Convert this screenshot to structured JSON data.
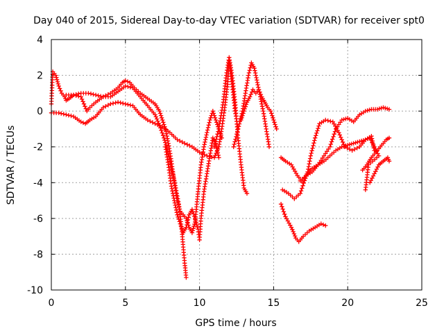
{
  "chart_data": {
    "type": "scatter",
    "title": "Day 040 of 2015, Sidereal Day-to-day VTEC variation (SDTVAR) for receiver spt0",
    "xlabel": "GPS time / hours",
    "ylabel": "SDTVAR / TECUs",
    "xlim": [
      0,
      25
    ],
    "ylim": [
      -10,
      4
    ],
    "xticks": [
      0,
      5,
      10,
      15,
      20,
      25
    ],
    "yticks": [
      -10,
      -8,
      -6,
      -4,
      -2,
      0,
      2,
      4
    ],
    "grid": true,
    "marker": "+",
    "color": "#ff0000",
    "series": [
      {
        "points": [
          [
            0,
            0.4
          ],
          [
            0.1,
            2.2
          ],
          [
            0.3,
            2.0
          ],
          [
            0.5,
            1.4
          ],
          [
            0.7,
            1.0
          ],
          [
            0.9,
            0.8
          ],
          [
            1.0,
            0.6
          ],
          [
            1.2,
            0.7
          ],
          [
            1.5,
            0.9
          ],
          [
            2.0,
            1.0
          ],
          [
            2.5,
            1.0
          ],
          [
            3.0,
            0.9
          ],
          [
            3.5,
            0.8
          ],
          [
            4.0,
            1.0
          ],
          [
            4.5,
            1.3
          ],
          [
            4.8,
            1.6
          ],
          [
            5.0,
            1.7
          ],
          [
            5.3,
            1.6
          ],
          [
            5.6,
            1.3
          ],
          [
            6.0,
            1.0
          ],
          [
            6.5,
            0.7
          ],
          [
            7.0,
            0.4
          ],
          [
            7.3,
            0.0
          ],
          [
            7.5,
            -0.5
          ],
          [
            7.7,
            -1.0
          ],
          [
            7.9,
            -1.8
          ],
          [
            8.1,
            -2.8
          ],
          [
            8.3,
            -4.0
          ],
          [
            8.5,
            -5.0
          ],
          [
            8.7,
            -5.6
          ],
          [
            8.9,
            -5.8
          ],
          [
            9.1,
            -6.0
          ],
          [
            9.3,
            -6.5
          ],
          [
            9.5,
            -6.8
          ],
          [
            9.7,
            -6.2
          ],
          [
            9.9,
            -4.5
          ],
          [
            10.1,
            -3.0
          ],
          [
            10.3,
            -2.0
          ],
          [
            10.5,
            -1.2
          ],
          [
            10.7,
            -0.5
          ],
          [
            10.9,
            0.0
          ],
          [
            11.1,
            -0.5
          ],
          [
            11.3,
            -1.0
          ],
          [
            11.5,
            -1.5
          ]
        ]
      },
      {
        "points": [
          [
            0,
            -0.1
          ],
          [
            0.5,
            -0.1
          ],
          [
            1.0,
            -0.2
          ],
          [
            1.5,
            -0.3
          ],
          [
            2.0,
            -0.6
          ],
          [
            2.3,
            -0.7
          ],
          [
            2.6,
            -0.5
          ],
          [
            3.0,
            -0.3
          ],
          [
            3.5,
            0.2
          ],
          [
            4.0,
            0.4
          ],
          [
            4.5,
            0.5
          ],
          [
            5.0,
            0.4
          ],
          [
            5.5,
            0.3
          ],
          [
            6.0,
            -0.2
          ],
          [
            6.5,
            -0.5
          ],
          [
            7.0,
            -0.7
          ],
          [
            7.5,
            -0.9
          ],
          [
            8.0,
            -1.2
          ],
          [
            8.5,
            -1.6
          ],
          [
            9.0,
            -1.8
          ],
          [
            9.5,
            -2.0
          ],
          [
            10.0,
            -2.3
          ],
          [
            10.5,
            -2.5
          ],
          [
            11.0,
            -2.6
          ],
          [
            11.3,
            -2.0
          ],
          [
            11.5,
            -1.0
          ],
          [
            11.7,
            0.2
          ],
          [
            11.9,
            1.5
          ],
          [
            12.0,
            2.8
          ],
          [
            12.2,
            1.5
          ],
          [
            12.4,
            0.0
          ],
          [
            12.6,
            -1.0
          ]
        ]
      },
      {
        "points": [
          [
            1.0,
            0.9
          ],
          [
            1.5,
            0.9
          ],
          [
            2.0,
            0.8
          ],
          [
            2.2,
            0.4
          ],
          [
            2.4,
            0.0
          ],
          [
            2.6,
            0.2
          ],
          [
            3.0,
            0.5
          ],
          [
            3.5,
            0.8
          ],
          [
            4.0,
            0.8
          ],
          [
            4.5,
            1.1
          ],
          [
            5.0,
            1.4
          ],
          [
            5.5,
            1.3
          ],
          [
            6.0,
            0.8
          ],
          [
            6.5,
            0.3
          ],
          [
            7.0,
            -0.2
          ],
          [
            7.3,
            -0.8
          ],
          [
            7.6,
            -1.5
          ],
          [
            7.9,
            -2.4
          ],
          [
            8.2,
            -3.5
          ],
          [
            8.4,
            -4.3
          ],
          [
            8.6,
            -5.2
          ],
          [
            8.8,
            -6.6
          ],
          [
            8.9,
            -7.6
          ],
          [
            9.0,
            -8.5
          ],
          [
            9.1,
            -9.3
          ]
        ]
      },
      {
        "points": [
          [
            7.7,
            -2.0
          ],
          [
            7.9,
            -3.0
          ],
          [
            8.1,
            -4.2
          ],
          [
            8.3,
            -5.0
          ],
          [
            8.5,
            -5.8
          ],
          [
            8.7,
            -6.3
          ],
          [
            8.9,
            -6.8
          ],
          [
            9.1,
            -6.5
          ],
          [
            9.3,
            -5.8
          ],
          [
            9.5,
            -5.5
          ],
          [
            9.7,
            -6.0
          ],
          [
            9.9,
            -6.6
          ],
          [
            10.0,
            -7.2
          ],
          [
            10.1,
            -6.0
          ],
          [
            10.3,
            -4.5
          ],
          [
            10.5,
            -3.5
          ],
          [
            10.7,
            -2.5
          ],
          [
            10.9,
            -1.5
          ],
          [
            11.1,
            -1.8
          ],
          [
            11.3,
            -2.6
          ]
        ]
      },
      {
        "points": [
          [
            11.0,
            -2.0
          ],
          [
            11.3,
            -1.0
          ],
          [
            11.6,
            0.5
          ],
          [
            11.8,
            2.0
          ],
          [
            12.0,
            3.0
          ],
          [
            12.2,
            2.0
          ],
          [
            12.4,
            0.5
          ],
          [
            12.6,
            -1.5
          ],
          [
            12.8,
            -3.0
          ],
          [
            13.0,
            -4.3
          ],
          [
            13.2,
            -4.6
          ]
        ]
      },
      {
        "points": [
          [
            12.3,
            -2.0
          ],
          [
            12.6,
            -1.0
          ],
          [
            12.9,
            0.0
          ],
          [
            13.1,
            1.0
          ],
          [
            13.3,
            2.0
          ],
          [
            13.5,
            2.7
          ],
          [
            13.7,
            2.4
          ],
          [
            13.9,
            1.6
          ],
          [
            14.1,
            0.8
          ],
          [
            14.3,
            0.0
          ],
          [
            14.5,
            -1.0
          ],
          [
            14.7,
            -2.0
          ]
        ]
      },
      {
        "points": [
          [
            12.8,
            -0.5
          ],
          [
            13.0,
            0.0
          ],
          [
            13.2,
            0.5
          ],
          [
            13.4,
            0.8
          ],
          [
            13.6,
            1.2
          ],
          [
            13.8,
            1.0
          ],
          [
            14.0,
            1.2
          ],
          [
            14.2,
            0.8
          ],
          [
            14.4,
            0.5
          ],
          [
            14.6,
            0.2
          ],
          [
            14.8,
            0.0
          ],
          [
            15.0,
            -0.5
          ],
          [
            15.2,
            -1.0
          ]
        ]
      },
      {
        "points": [
          [
            15.5,
            -2.6
          ],
          [
            15.8,
            -2.8
          ],
          [
            16.2,
            -3.0
          ],
          [
            16.6,
            -3.6
          ],
          [
            17.0,
            -4.0
          ],
          [
            17.3,
            -3.4
          ],
          [
            17.5,
            -2.5
          ],
          [
            17.8,
            -1.5
          ],
          [
            18.1,
            -0.7
          ],
          [
            18.5,
            -0.5
          ],
          [
            19.0,
            -0.6
          ],
          [
            19.4,
            -1.2
          ],
          [
            19.8,
            -2.0
          ],
          [
            20.3,
            -2.2
          ],
          [
            20.8,
            -2.0
          ],
          [
            21.2,
            -1.6
          ],
          [
            21.5,
            -1.5
          ],
          [
            21.8,
            -2.0
          ],
          [
            22.1,
            -2.5
          ],
          [
            21.4,
            -3.0
          ],
          [
            21.2,
            -4.4
          ]
        ]
      },
      {
        "points": [
          [
            15.6,
            -4.4
          ],
          [
            16.0,
            -4.6
          ],
          [
            16.4,
            -4.9
          ],
          [
            16.8,
            -4.6
          ],
          [
            17.2,
            -3.6
          ],
          [
            17.6,
            -3.2
          ],
          [
            18.0,
            -3.0
          ],
          [
            18.4,
            -2.8
          ],
          [
            18.8,
            -2.5
          ],
          [
            19.2,
            -2.2
          ],
          [
            19.6,
            -2.0
          ],
          [
            20.0,
            -1.9
          ],
          [
            20.4,
            -1.8
          ],
          [
            20.8,
            -1.7
          ],
          [
            21.2,
            -1.6
          ],
          [
            21.6,
            -1.4
          ],
          [
            21.8,
            -2.2
          ]
        ]
      },
      {
        "points": [
          [
            15.5,
            -5.2
          ],
          [
            15.8,
            -5.9
          ],
          [
            16.2,
            -6.5
          ],
          [
            16.5,
            -7.1
          ],
          [
            16.7,
            -7.3
          ],
          [
            17.0,
            -7.0
          ],
          [
            17.4,
            -6.7
          ],
          [
            17.8,
            -6.5
          ],
          [
            18.2,
            -6.3
          ],
          [
            18.5,
            -6.4
          ]
        ]
      },
      {
        "points": [
          [
            16.8,
            -3.9
          ],
          [
            17.2,
            -3.6
          ],
          [
            17.6,
            -3.4
          ],
          [
            18.0,
            -3.0
          ],
          [
            18.4,
            -2.5
          ],
          [
            18.8,
            -2.0
          ],
          [
            19.2,
            -1.0
          ],
          [
            19.6,
            -0.5
          ],
          [
            20.0,
            -0.4
          ],
          [
            20.4,
            -0.6
          ],
          [
            20.8,
            -0.2
          ],
          [
            21.2,
            0.0
          ],
          [
            21.6,
            0.1
          ],
          [
            22.0,
            0.1
          ],
          [
            22.4,
            0.2
          ],
          [
            22.8,
            0.1
          ]
        ]
      },
      {
        "points": [
          [
            21.0,
            -3.3
          ],
          [
            21.3,
            -3.0
          ],
          [
            21.6,
            -2.6
          ],
          [
            22.0,
            -2.2
          ],
          [
            22.3,
            -1.9
          ],
          [
            22.6,
            -1.6
          ],
          [
            22.8,
            -1.5
          ]
        ]
      },
      {
        "points": [
          [
            21.5,
            -4.0
          ],
          [
            21.8,
            -3.5
          ],
          [
            22.1,
            -3.0
          ],
          [
            22.4,
            -2.8
          ],
          [
            22.7,
            -2.6
          ],
          [
            22.8,
            -2.8
          ]
        ]
      }
    ]
  }
}
